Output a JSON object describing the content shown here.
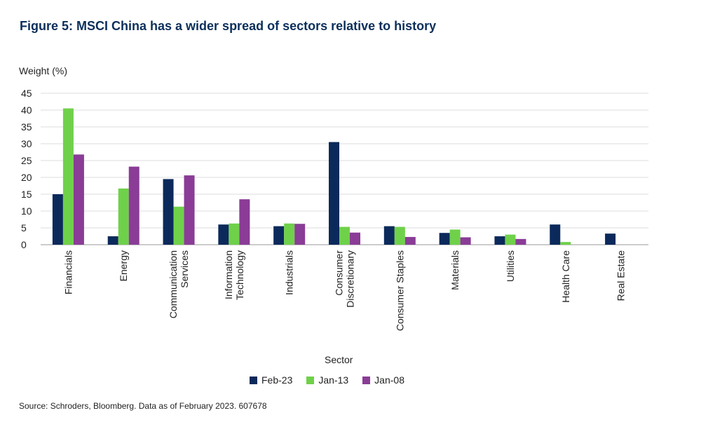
{
  "title": "Figure 5: MSCI China has a wider spread of sectors relative to history",
  "source": "Source: Schroders, Bloomberg. Data as of February 2023. 607678",
  "colors": {
    "Feb-23": "#0b2a5b",
    "Jan-13": "#6fd14a",
    "Jan-08": "#8a3c96"
  },
  "chart_data": {
    "type": "bar",
    "title": "Figure 5: MSCI China has a wider spread of sectors relative to history",
    "xlabel": "Sector",
    "ylabel": "Weight (%)",
    "ylim": [
      0,
      45
    ],
    "yticks": [
      0,
      5,
      10,
      15,
      20,
      25,
      30,
      35,
      40,
      45
    ],
    "grid": true,
    "legend": "bottom",
    "categories": [
      "Financials",
      "Energy",
      "Communication Services",
      "Information Technology",
      "Industrials",
      "Consumer Discretionary",
      "Consumer Staples",
      "Materials",
      "Utilities",
      "Health Care",
      "Real Estate"
    ],
    "category_lines": [
      [
        "Financials"
      ],
      [
        "Energy"
      ],
      [
        "Communication",
        "Services"
      ],
      [
        "Information",
        "Technology"
      ],
      [
        "Industrials"
      ],
      [
        "Consumer",
        "Discretionary"
      ],
      [
        "Consumer Staples"
      ],
      [
        "Materials"
      ],
      [
        "Utilities"
      ],
      [
        "Health Care"
      ],
      [
        "Real Estate"
      ]
    ],
    "series": [
      {
        "name": "Feb-23",
        "values": [
          15,
          2.5,
          19.5,
          6,
          5.5,
          30.5,
          5.5,
          3.5,
          2.5,
          6,
          3.3
        ]
      },
      {
        "name": "Jan-13",
        "values": [
          40.5,
          16.7,
          11.3,
          6.3,
          6.3,
          5.3,
          5.3,
          4.5,
          3,
          0.8,
          0
        ]
      },
      {
        "name": "Jan-08",
        "values": [
          26.8,
          23.2,
          20.6,
          13.5,
          6.2,
          3.6,
          2.3,
          2.2,
          1.7,
          0,
          0
        ]
      }
    ]
  }
}
